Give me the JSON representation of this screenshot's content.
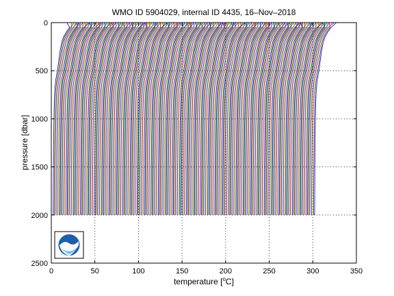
{
  "chart_data": {
    "type": "line",
    "title": "WMO ID 5904029, internal ID 4435, 16–Nov–2018",
    "xlabel_prefix": "temperature [",
    "xlabel_sup": "o",
    "xlabel_suffix": "C]",
    "ylabel": "pressure [dbar]",
    "xlim": [
      0,
      350
    ],
    "ylim": [
      2500,
      0
    ],
    "y_reversed": true,
    "x_ticks": [
      0,
      50,
      100,
      150,
      200,
      250,
      300,
      350
    ],
    "x_tick_labels": [
      "0",
      "50",
      "100",
      "150",
      "200",
      "250",
      "300",
      "350"
    ],
    "y_ticks": [
      0,
      500,
      1000,
      1500,
      2000,
      2500
    ],
    "y_tick_labels": [
      "0",
      "500",
      "1000",
      "1500",
      "2000",
      "2500"
    ],
    "grid": "dotted",
    "profiles": {
      "count": 260,
      "first_offset": 0,
      "last_offset": 300,
      "pressure": [
        0,
        50,
        100,
        150,
        200,
        300,
        400,
        500,
        600,
        700,
        800,
        1000,
        1200,
        1500,
        1800,
        2000
      ],
      "base_temperature": [
        22,
        21,
        17,
        14,
        12,
        10,
        8.5,
        7,
        5,
        4,
        3.5,
        3,
        2.7,
        2.4,
        2.2,
        2.1
      ]
    },
    "colors": [
      "#0000ff",
      "#008000",
      "#ff0000",
      "#00bfbf",
      "#bf00bf",
      "#bfbf00",
      "#404040"
    ],
    "logo": "noaa-logo"
  }
}
